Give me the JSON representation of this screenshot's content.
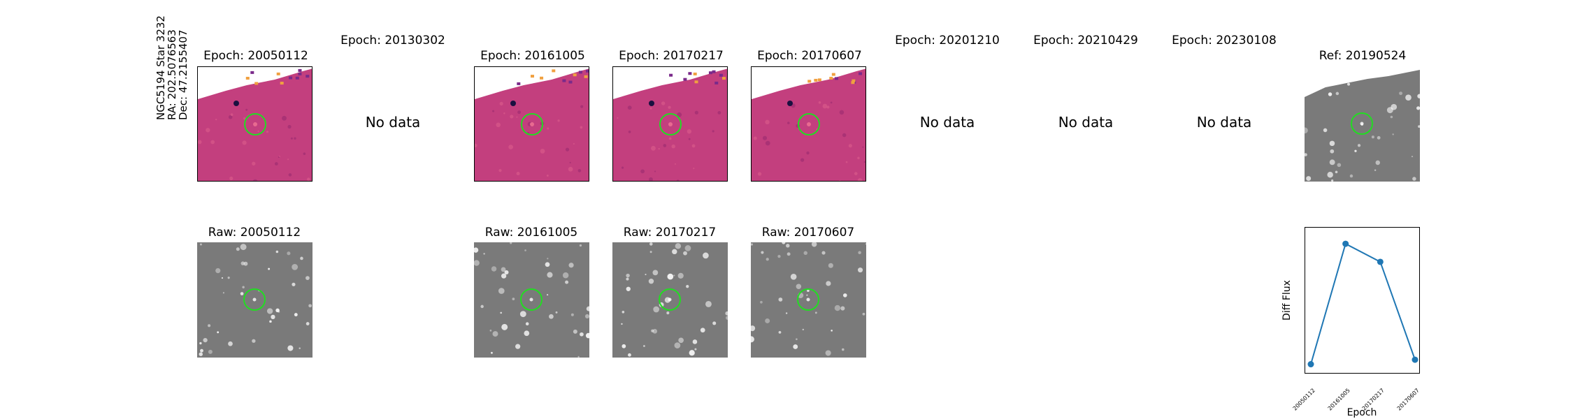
{
  "object": {
    "line1": "NGC5194 Star 3232",
    "line2": "RA: 202.5076563",
    "line3": "Dec: 47.2155407"
  },
  "top_titles": [
    "Epoch: 20050112",
    "Epoch: 20130302",
    "Epoch: 20161005",
    "Epoch: 20170217",
    "Epoch: 20170607",
    "Epoch: 20201210",
    "Epoch: 20210429",
    "Epoch: 20230108",
    "Ref: 20190524"
  ],
  "no_data_label": "No data",
  "raw_titles": [
    "Raw: 20050112",
    "Raw: 20161005",
    "Raw: 20170217",
    "Raw: 20170607"
  ],
  "colors": {
    "diff_bg": "#c33f7e",
    "raw_bg": "#7a7a7a",
    "aperture": "#22dd22",
    "series": "#1f77b4"
  },
  "chart_data": {
    "type": "line",
    "x": [
      "20050112",
      "20161005",
      "20170217",
      "20170607"
    ],
    "values": [
      0.03,
      0.83,
      0.71,
      0.06
    ],
    "ylim": [
      0,
      0.9
    ],
    "xlabel": "Epoch",
    "ylabel": "Diff Flux",
    "grid": false
  }
}
